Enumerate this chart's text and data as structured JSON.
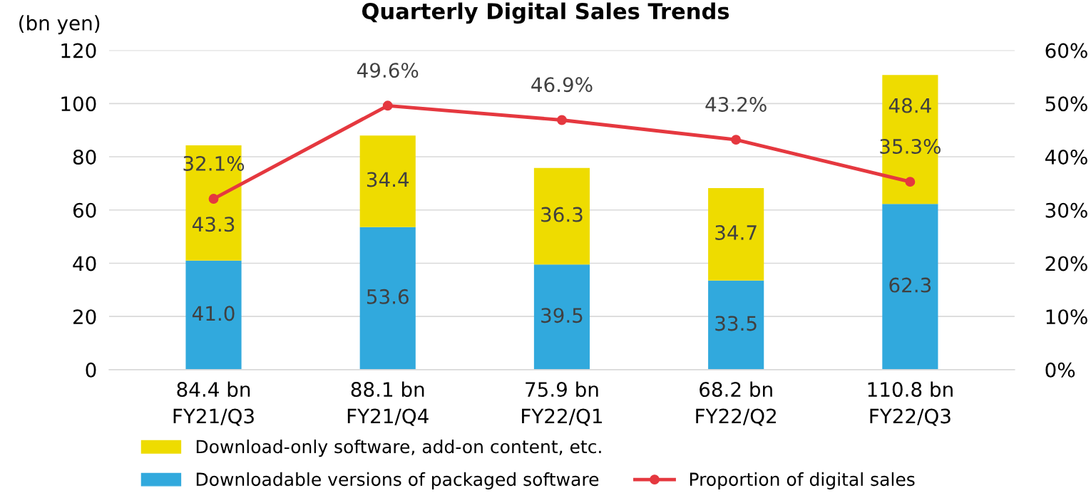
{
  "chart_data": {
    "type": "bar",
    "stacked": true,
    "title": "Quarterly Digital Sales Trends",
    "ylabel": "(bn yen)",
    "categories": [
      "FY21/Q3",
      "FY21/Q4",
      "FY22/Q1",
      "FY22/Q2",
      "FY22/Q3"
    ],
    "totals": [
      "84.4 bn",
      "88.1 bn",
      "75.9 bn",
      "68.2 bn",
      "110.8 bn"
    ],
    "series": [
      {
        "name": "Downloadable versions of packaged software",
        "color": "#31a9dd",
        "values": [
          41.0,
          53.6,
          39.5,
          33.5,
          62.3
        ],
        "value_labels": [
          "41.0",
          "53.6",
          "39.5",
          "33.5",
          "62.3"
        ]
      },
      {
        "name": "Download-only software, add-on content, etc.",
        "color": "#eedc00",
        "values": [
          43.3,
          34.4,
          36.3,
          34.7,
          48.4
        ],
        "value_labels": [
          "43.3",
          "34.4",
          "36.3",
          "34.7",
          "48.4"
        ]
      },
      {
        "name": "Proportion of digital sales",
        "type": "line",
        "axis": "y2",
        "color": "#e5383f",
        "marker": "circle",
        "values": [
          32.1,
          49.6,
          46.9,
          43.2,
          35.3
        ],
        "value_labels": [
          "32.1%",
          "49.6%",
          "46.9%",
          "43.2%",
          "35.3%"
        ]
      }
    ],
    "ylim": [
      0,
      120
    ],
    "yticks": [
      0,
      20,
      40,
      60,
      80,
      100,
      120
    ],
    "y2lim": [
      0,
      60
    ],
    "y2ticks": [
      {
        "value": 0,
        "label": "0%"
      },
      {
        "value": 10,
        "label": "10%"
      },
      {
        "value": 20,
        "label": "20%"
      },
      {
        "value": 30,
        "label": "30%"
      },
      {
        "value": 40,
        "label": "40%"
      },
      {
        "value": 50,
        "label": "50%"
      },
      {
        "value": 60,
        "label": "60%"
      }
    ],
    "grid": "y",
    "legend": "bottom"
  }
}
